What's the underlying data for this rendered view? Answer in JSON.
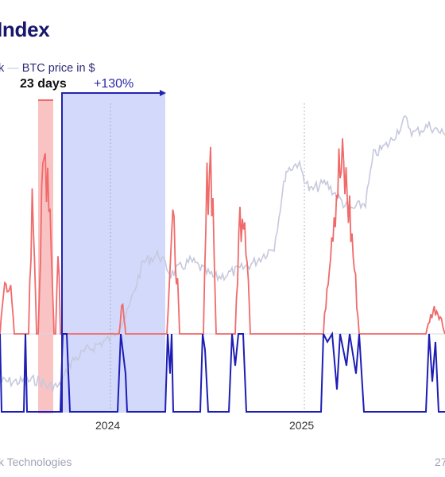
{
  "title": "Index",
  "legend": {
    "first_fragment": "k",
    "btc_label": "BTC price in $"
  },
  "annotations": {
    "days": "23 days",
    "gain": "+130%"
  },
  "footer": {
    "left": "k Technologies",
    "right": "27"
  },
  "colors": {
    "index_high": "#f06a6a",
    "index_low": "#1d1db5",
    "btc": "#c9cbe0",
    "highlight_red": "#f7b9b9",
    "highlight_blue": "#cdd5fb",
    "arrow": "#2222b0",
    "title": "#16166b"
  },
  "chart_data": {
    "type": "line",
    "x_ticks": [
      "2024",
      "2025"
    ],
    "series": [
      {
        "name": "BTC price in $",
        "color": "#c9cbe0"
      }
    ],
    "legend_placement": "top-left",
    "grid": "vertical dotted lines at year boundaries"
  }
}
